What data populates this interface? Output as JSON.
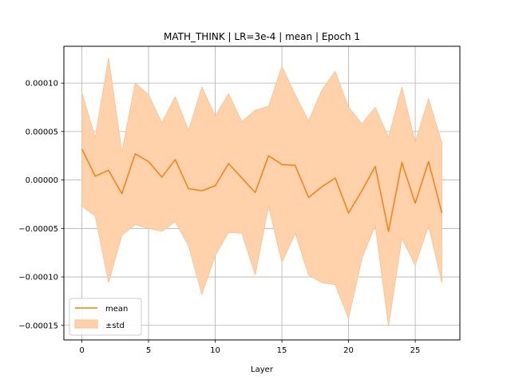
{
  "chart_data": {
    "type": "line",
    "title": "MATH_THINK | LR=3e-4 | mean | Epoch 1",
    "xlabel": "Layer",
    "ylabel": "",
    "x": [
      0,
      1,
      2,
      3,
      4,
      5,
      6,
      7,
      8,
      9,
      10,
      11,
      12,
      13,
      14,
      15,
      16,
      17,
      18,
      19,
      20,
      21,
      22,
      23,
      24,
      25,
      26,
      27
    ],
    "xlim": [
      -1.35,
      28.35
    ],
    "ylim": [
      -0.000165,
      0.000138
    ],
    "xticks": [
      0,
      5,
      10,
      15,
      20,
      25
    ],
    "xtick_labels": [
      "0",
      "5",
      "10",
      "15",
      "20",
      "25"
    ],
    "yticks": [
      -0.00015,
      -0.0001,
      -5e-05,
      0.0,
      5e-05,
      0.0001
    ],
    "ytick_labels": [
      "−0.00015",
      "−0.00010",
      "−0.00005",
      "0.00000",
      "0.00005",
      "0.00010"
    ],
    "grid": true,
    "legend_position": "lower-left",
    "colors": {
      "line": "#ff7f0e",
      "band": "#ffd2ab",
      "band_edge": "#ffbf8a",
      "grid": "#b0b0b0"
    },
    "series": [
      {
        "name": "mean",
        "values": [
          3.2e-05,
          4e-06,
          1e-05,
          -1.4e-05,
          2.7e-05,
          1.9e-05,
          3e-06,
          2.1e-05,
          -9e-06,
          -1.1e-05,
          -6e-06,
          1.7e-05,
          2e-06,
          -1.3e-05,
          2.5e-05,
          1.6e-05,
          1.5e-05,
          -1.8e-05,
          -7e-06,
          2e-06,
          -3.4e-05,
          -1.1e-05,
          1.4e-05,
          -5.3e-05,
          1.8e-05,
          -2.4e-05,
          1.9e-05,
          -3.4e-05
        ]
      },
      {
        "name": "±std",
        "kind": "band",
        "upper": [
          9e-05,
          4.4e-05,
          0.000126,
          2.9e-05,
          0.0001,
          8.8e-05,
          5.9e-05,
          8.6e-05,
          5.1e-05,
          9.6e-05,
          6.6e-05,
          8.9e-05,
          6e-05,
          7.2e-05,
          7.6e-05,
          0.000117,
          8.8e-05,
          6.1e-05,
          9.3e-05,
          0.000112,
          7.5e-05,
          5.8e-05,
          7.5e-05,
          4.4e-05,
          9.6e-05,
          3.9e-05,
          8.4e-05,
          3.8e-05
        ],
        "lower": [
          -2.7e-05,
          -3.7e-05,
          -0.000106,
          -5.7e-05,
          -4.6e-05,
          -5e-05,
          -5.3e-05,
          -4.3e-05,
          -6.8e-05,
          -0.000118,
          -7.8e-05,
          -5.4e-05,
          -5.5e-05,
          -9.8e-05,
          -2.7e-05,
          -8.5e-05,
          -5.5e-05,
          -9.8e-05,
          -0.000106,
          -0.000108,
          -0.000143,
          -8.1e-05,
          -4.7e-05,
          -0.000151,
          -6e-05,
          -8.8e-05,
          -4.7e-05,
          -0.000106
        ]
      }
    ],
    "legend": [
      "mean",
      "±std"
    ]
  }
}
